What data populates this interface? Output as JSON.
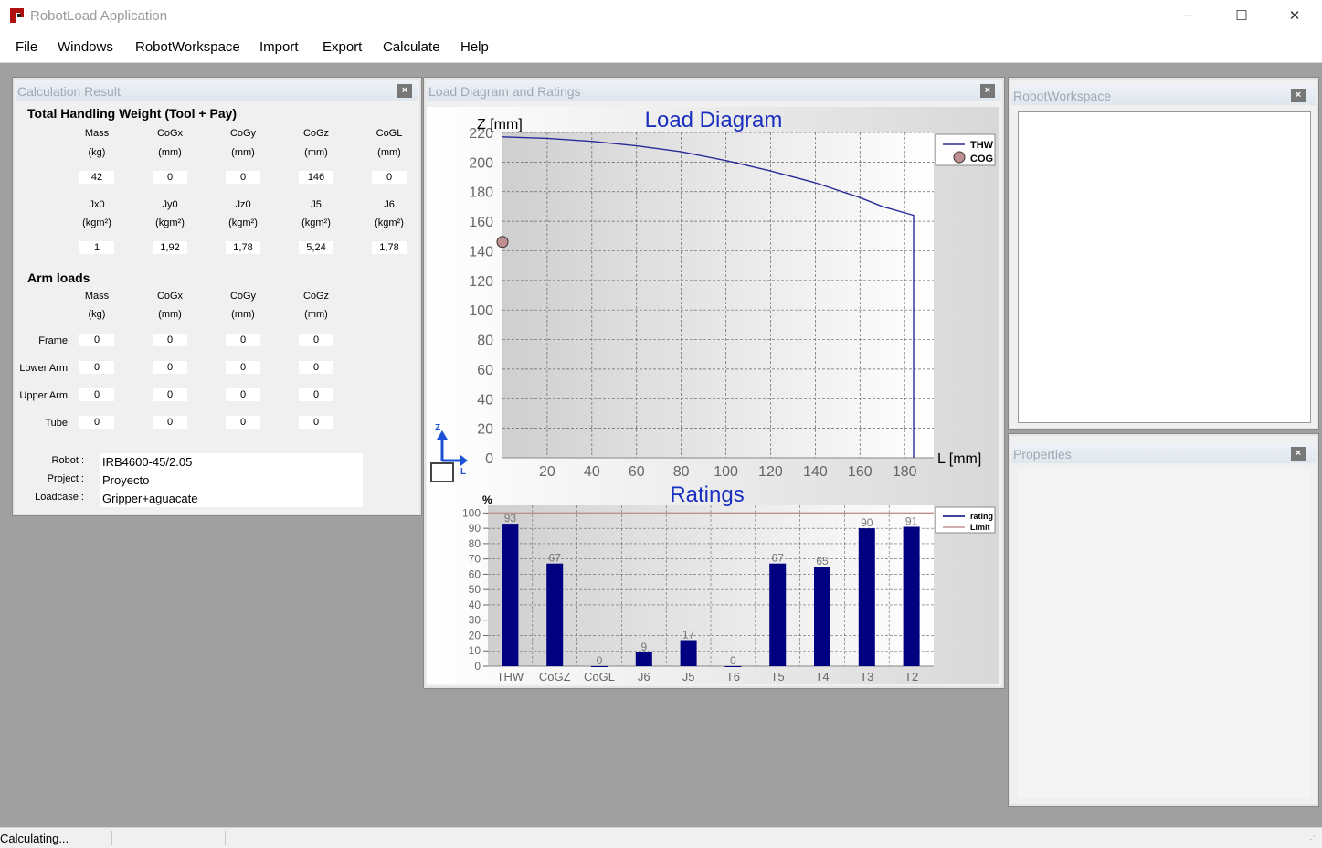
{
  "window": {
    "title": "RobotLoad Application",
    "minimize": "─",
    "maximize": "☐",
    "close": "✕"
  },
  "menu": [
    "File",
    "Windows",
    "RobotWorkspace",
    "Import",
    "Export",
    "Calculate",
    "Help"
  ],
  "calc": {
    "title": "Calculation Result",
    "close": "×",
    "thw_header": "Total Handling Weight (Tool + Pay)",
    "row1_labels": [
      [
        "Mass",
        "(kg)"
      ],
      [
        "CoGx",
        "(mm)"
      ],
      [
        "CoGy",
        "(mm)"
      ],
      [
        "CoGz",
        "(mm)"
      ],
      [
        "CoGL",
        "(mm)"
      ]
    ],
    "row1_values": [
      "42",
      "0",
      "0",
      "146",
      "0"
    ],
    "row2_labels": [
      [
        "Jx0",
        "(kgm²)"
      ],
      [
        "Jy0",
        "(kgm²)"
      ],
      [
        "Jz0",
        "(kgm²)"
      ],
      [
        "J5",
        "(kgm²)"
      ],
      [
        "J6",
        "(kgm²)"
      ]
    ],
    "row2_values": [
      "1",
      "1,92",
      "1,78",
      "5,24",
      "1,78"
    ],
    "arm_header": "Arm loads",
    "arm_labels": [
      [
        "Mass",
        "(kg)"
      ],
      [
        "CoGx",
        "(mm)"
      ],
      [
        "CoGy",
        "(mm)"
      ],
      [
        "CoGz",
        "(mm)"
      ]
    ],
    "arm_rows": [
      {
        "name": "Frame",
        "values": [
          "0",
          "0",
          "0",
          "0"
        ]
      },
      {
        "name": "Lower Arm",
        "values": [
          "0",
          "0",
          "0",
          "0"
        ]
      },
      {
        "name": "Upper Arm",
        "values": [
          "0",
          "0",
          "0",
          "0"
        ]
      },
      {
        "name": "Tube",
        "values": [
          "0",
          "0",
          "0",
          "0"
        ]
      }
    ],
    "robot_label": "Robot :",
    "robot_value": "IRB4600-45/2.05",
    "project_label": "Project :",
    "project_value": "Proyecto",
    "loadcase_label": "Loadcase :",
    "loadcase_value": "Gripper+aguacate"
  },
  "diagram_panel": {
    "title": "Load Diagram and Ratings",
    "close": "×"
  },
  "workspace_panel": {
    "title": "RobotWorkspace",
    "close": "×"
  },
  "properties_panel": {
    "title": "Properties",
    "close": "×"
  },
  "axis_icon": {
    "z": "Z",
    "l": "L"
  },
  "status": {
    "text": "Calculating..."
  },
  "chart_data": [
    {
      "type": "line",
      "title": "Load Diagram",
      "xlabel": "L [mm]",
      "ylabel": "Z [mm]",
      "xlim": [
        0,
        193
      ],
      "ylim": [
        0,
        220
      ],
      "xticks": [
        20,
        40,
        60,
        80,
        100,
        120,
        140,
        160,
        180
      ],
      "yticks": [
        0,
        20,
        40,
        60,
        80,
        100,
        120,
        140,
        160,
        180,
        200,
        220
      ],
      "grid": true,
      "legend": "top-right",
      "series": [
        {
          "name": "THW",
          "color": "#2a2a9a",
          "x": [
            0,
            20,
            40,
            60,
            80,
            100,
            120,
            140,
            160,
            170,
            184,
            184
          ],
          "y": [
            217,
            216,
            214,
            211,
            207,
            201,
            194,
            186,
            176,
            170,
            164,
            0
          ]
        }
      ],
      "points": [
        {
          "name": "COG",
          "x": 0,
          "y": 146,
          "color": "#c09090"
        }
      ]
    },
    {
      "type": "bar",
      "title": "Ratings",
      "ylabel": "%",
      "categories": [
        "THW",
        "CoGZ",
        "CoGL",
        "J6",
        "J5",
        "T6",
        "T5",
        "T4",
        "T3",
        "T2"
      ],
      "ylim": [
        0,
        105
      ],
      "yticks": [
        0,
        10,
        20,
        30,
        40,
        50,
        60,
        70,
        80,
        90,
        100
      ],
      "grid": true,
      "legend": "top-right",
      "series": [
        {
          "name": "rating",
          "color": "#000080",
          "values": [
            93,
            67,
            0,
            9,
            17,
            0,
            67,
            65,
            90,
            91
          ]
        }
      ],
      "limit": {
        "name": "Limit",
        "value": 100,
        "color": "#c09090"
      }
    }
  ]
}
